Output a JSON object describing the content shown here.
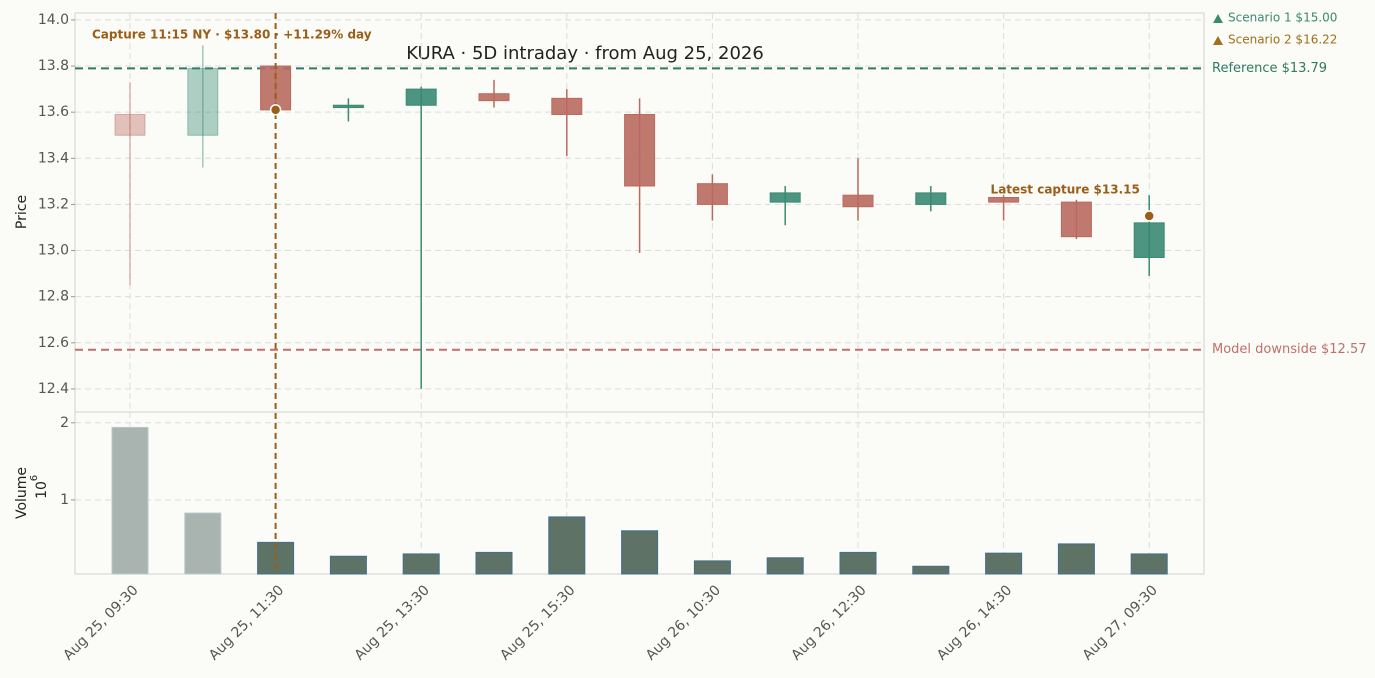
{
  "chart_data": [
    {
      "type": "candlestick",
      "title": "KURA  ·  5D intraday  ·  from Aug 25, 2026",
      "ylabel": "Price",
      "categories": [
        "Aug 25, 09:30",
        null,
        "Aug 25, 11:30",
        null,
        "Aug 25, 13:30",
        null,
        "Aug 25, 15:30",
        null,
        "Aug 26, 10:30",
        null,
        "Aug 26, 12:30",
        null,
        "Aug 26, 14:30",
        null,
        "Aug 27, 09:30"
      ],
      "open": [
        13.59,
        13.5,
        13.8,
        13.62,
        13.63,
        13.68,
        13.66,
        13.59,
        13.29,
        13.21,
        13.24,
        13.2,
        13.23,
        13.21,
        12.97
      ],
      "high": [
        13.73,
        13.89,
        13.8,
        13.66,
        13.71,
        13.74,
        13.7,
        13.66,
        13.33,
        13.28,
        13.4,
        13.28,
        13.24,
        13.22,
        13.24
      ],
      "low": [
        12.85,
        13.36,
        13.61,
        13.56,
        12.4,
        13.62,
        13.41,
        12.99,
        13.13,
        13.11,
        13.13,
        13.17,
        13.13,
        13.05,
        12.89
      ],
      "close": [
        13.5,
        13.79,
        13.61,
        13.63,
        13.7,
        13.65,
        13.59,
        13.28,
        13.2,
        13.25,
        13.19,
        13.25,
        13.21,
        13.06,
        13.12
      ],
      "up_color": "#3a8a72",
      "down_color": "#b96a5f",
      "faded_count": 2,
      "ylim": [
        12.3,
        14.03
      ],
      "yticks": [
        12.4,
        12.6,
        12.8,
        {
          "value": 13.0,
          "label": "13.0"
        },
        13.2,
        13.4,
        13.6,
        13.8,
        {
          "value": 14.0,
          "label": "14.0"
        }
      ],
      "grid": true,
      "hlines": [
        {
          "label": "Reference $13.79",
          "value": 13.79,
          "color": "#2f7a62"
        },
        {
          "label": "Model downside $12.57",
          "value": 12.57,
          "color": "#c0706a"
        }
      ],
      "annotations": [
        {
          "text": "Capture 11:15 NY · $13.80 · +11.29% day",
          "x_index": 2,
          "y": 13.61,
          "vline": true
        },
        {
          "text": "Latest capture $13.15",
          "x_index": 14,
          "y": 13.15,
          "vline": false
        }
      ],
      "annotation_color": "#9a5e18",
      "targets": [
        {
          "label": "Scenario 1 $15.00",
          "value": 15.0,
          "color": "#3a8a72"
        },
        {
          "label": "Scenario 2 $16.22",
          "value": 16.22,
          "color": "#a0701a"
        }
      ]
    },
    {
      "type": "bar",
      "ylabel": "Volume",
      "scale_base": "10",
      "scale_power": "6",
      "values": [
        1.94,
        0.83,
        0.45,
        0.27,
        0.3,
        0.32,
        0.78,
        0.6,
        0.21,
        0.25,
        0.32,
        0.14,
        0.31,
        0.43,
        0.3
      ],
      "color": "#5f7266",
      "edge_color": "#3f6f8f",
      "faded_color": "#a9b3b0",
      "faded_count": 2,
      "ylim": [
        0.04,
        2.14
      ],
      "yticks": [
        1,
        2
      ],
      "grid": true
    }
  ]
}
